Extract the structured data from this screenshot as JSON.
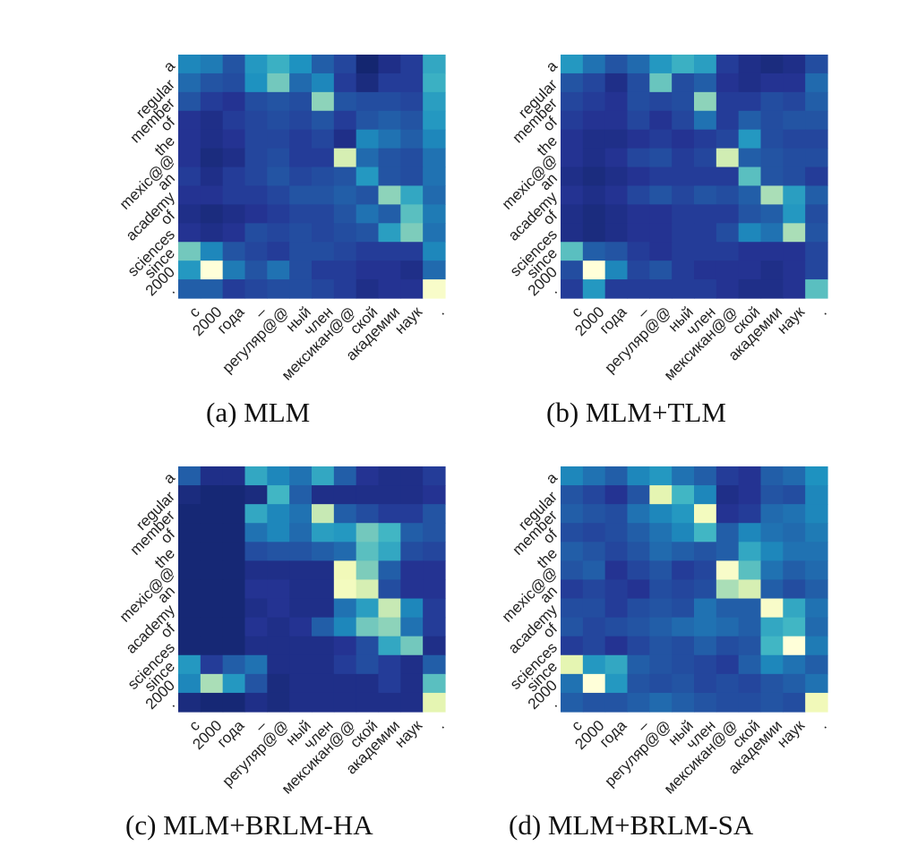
{
  "figure": {
    "colormap": {
      "name": "YlGnBu",
      "stops": [
        "#081d58",
        "#253494",
        "#225ea8",
        "#1d91c0",
        "#41b6c4",
        "#7fcdbb",
        "#c7e9b4",
        "#edf8b1",
        "#ffffd9"
      ]
    },
    "y_tokens": [
      "a",
      "regular",
      "member",
      "of",
      "the",
      "mexic@@",
      "an",
      "academy",
      "of",
      "sciences",
      "since",
      "2000",
      "."
    ],
    "x_tokens": [
      "с",
      "2000",
      "года",
      "–",
      "регуляр@@",
      "ный",
      "член",
      "мексикан@@",
      "ской",
      "академии",
      "наук",
      "."
    ]
  },
  "chart_data": [
    {
      "type": "heatmap",
      "title": "(a) MLM",
      "caption_prefix": "(a)",
      "caption_name": "MLM",
      "values": [
        [
          0.35,
          0.32,
          0.22,
          0.4,
          0.48,
          0.38,
          0.25,
          0.18,
          0.05,
          0.1,
          0.15,
          0.45
        ],
        [
          0.28,
          0.22,
          0.2,
          0.38,
          0.6,
          0.28,
          0.35,
          0.15,
          0.08,
          0.15,
          0.15,
          0.48
        ],
        [
          0.22,
          0.15,
          0.12,
          0.2,
          0.22,
          0.2,
          0.65,
          0.22,
          0.2,
          0.2,
          0.18,
          0.42
        ],
        [
          0.12,
          0.1,
          0.15,
          0.18,
          0.2,
          0.18,
          0.22,
          0.15,
          0.22,
          0.25,
          0.22,
          0.4
        ],
        [
          0.12,
          0.1,
          0.12,
          0.18,
          0.18,
          0.15,
          0.18,
          0.1,
          0.35,
          0.3,
          0.25,
          0.35
        ],
        [
          0.12,
          0.08,
          0.1,
          0.18,
          0.2,
          0.15,
          0.15,
          0.8,
          0.28,
          0.22,
          0.2,
          0.3
        ],
        [
          0.15,
          0.1,
          0.15,
          0.18,
          0.22,
          0.18,
          0.2,
          0.22,
          0.4,
          0.22,
          0.2,
          0.3
        ],
        [
          0.12,
          0.12,
          0.15,
          0.15,
          0.18,
          0.22,
          0.22,
          0.25,
          0.22,
          0.65,
          0.45,
          0.28
        ],
        [
          0.1,
          0.08,
          0.1,
          0.12,
          0.15,
          0.18,
          0.18,
          0.22,
          0.3,
          0.25,
          0.55,
          0.32
        ],
        [
          0.12,
          0.1,
          0.12,
          0.2,
          0.18,
          0.2,
          0.18,
          0.2,
          0.22,
          0.42,
          0.62,
          0.3
        ],
        [
          0.6,
          0.35,
          0.22,
          0.18,
          0.15,
          0.2,
          0.2,
          0.18,
          0.15,
          0.15,
          0.15,
          0.35
        ],
        [
          0.4,
          1.0,
          0.32,
          0.22,
          0.3,
          0.2,
          0.15,
          0.15,
          0.12,
          0.12,
          0.1,
          0.28
        ],
        [
          0.25,
          0.25,
          0.15,
          0.18,
          0.2,
          0.2,
          0.18,
          0.15,
          0.1,
          0.12,
          0.12,
          0.95
        ]
      ]
    },
    {
      "type": "heatmap",
      "title": "(b) MLM+TLM",
      "caption_prefix": "(b)",
      "caption_name": "MLM+TLM",
      "values": [
        [
          0.4,
          0.3,
          0.22,
          0.28,
          0.4,
          0.48,
          0.42,
          0.15,
          0.1,
          0.08,
          0.1,
          0.2
        ],
        [
          0.22,
          0.18,
          0.1,
          0.2,
          0.58,
          0.2,
          0.25,
          0.12,
          0.1,
          0.12,
          0.12,
          0.28
        ],
        [
          0.18,
          0.15,
          0.12,
          0.2,
          0.18,
          0.2,
          0.65,
          0.15,
          0.15,
          0.2,
          0.18,
          0.25
        ],
        [
          0.15,
          0.12,
          0.12,
          0.18,
          0.12,
          0.18,
          0.3,
          0.15,
          0.25,
          0.2,
          0.22,
          0.22
        ],
        [
          0.12,
          0.1,
          0.1,
          0.12,
          0.15,
          0.12,
          0.15,
          0.18,
          0.4,
          0.2,
          0.18,
          0.18
        ],
        [
          0.12,
          0.1,
          0.12,
          0.18,
          0.2,
          0.15,
          0.18,
          0.78,
          0.25,
          0.22,
          0.2,
          0.2
        ],
        [
          0.1,
          0.08,
          0.1,
          0.12,
          0.15,
          0.15,
          0.15,
          0.15,
          0.55,
          0.22,
          0.2,
          0.15
        ],
        [
          0.12,
          0.1,
          0.12,
          0.18,
          0.22,
          0.18,
          0.22,
          0.2,
          0.25,
          0.7,
          0.42,
          0.25
        ],
        [
          0.1,
          0.08,
          0.1,
          0.12,
          0.12,
          0.15,
          0.15,
          0.15,
          0.22,
          0.25,
          0.4,
          0.2
        ],
        [
          0.1,
          0.08,
          0.1,
          0.12,
          0.12,
          0.15,
          0.15,
          0.2,
          0.35,
          0.3,
          0.7,
          0.22
        ],
        [
          0.55,
          0.25,
          0.22,
          0.15,
          0.12,
          0.15,
          0.15,
          0.15,
          0.12,
          0.12,
          0.12,
          0.18
        ],
        [
          0.2,
          1.0,
          0.35,
          0.18,
          0.22,
          0.15,
          0.12,
          0.12,
          0.12,
          0.1,
          0.12,
          0.18
        ],
        [
          0.15,
          0.4,
          0.15,
          0.15,
          0.15,
          0.15,
          0.15,
          0.12,
          0.1,
          0.1,
          0.12,
          0.55
        ]
      ]
    },
    {
      "type": "heatmap",
      "title": "(c) MLM+BRLM-HA",
      "caption_prefix": "(c)",
      "caption_name": "MLM+BRLM-HA",
      "values": [
        [
          0.25,
          0.1,
          0.1,
          0.45,
          0.35,
          0.3,
          0.45,
          0.25,
          0.12,
          0.1,
          0.1,
          0.15
        ],
        [
          0.08,
          0.06,
          0.06,
          0.08,
          0.5,
          0.25,
          0.1,
          0.1,
          0.1,
          0.1,
          0.1,
          0.12
        ],
        [
          0.06,
          0.06,
          0.06,
          0.45,
          0.35,
          0.3,
          0.75,
          0.25,
          0.2,
          0.15,
          0.15,
          0.22
        ],
        [
          0.06,
          0.06,
          0.06,
          0.3,
          0.35,
          0.28,
          0.42,
          0.4,
          0.6,
          0.5,
          0.25,
          0.22
        ],
        [
          0.06,
          0.06,
          0.06,
          0.2,
          0.22,
          0.22,
          0.25,
          0.28,
          0.55,
          0.45,
          0.2,
          0.18
        ],
        [
          0.06,
          0.06,
          0.06,
          0.1,
          0.1,
          0.1,
          0.1,
          0.9,
          0.62,
          0.25,
          0.12,
          0.12
        ],
        [
          0.06,
          0.06,
          0.06,
          0.12,
          0.12,
          0.1,
          0.1,
          0.92,
          0.8,
          0.2,
          0.12,
          0.12
        ],
        [
          0.06,
          0.06,
          0.06,
          0.1,
          0.12,
          0.1,
          0.1,
          0.3,
          0.42,
          0.75,
          0.35,
          0.15
        ],
        [
          0.06,
          0.06,
          0.06,
          0.12,
          0.1,
          0.12,
          0.25,
          0.35,
          0.6,
          0.65,
          0.3,
          0.15
        ],
        [
          0.06,
          0.06,
          0.06,
          0.1,
          0.1,
          0.1,
          0.1,
          0.12,
          0.2,
          0.45,
          0.6,
          0.1
        ],
        [
          0.4,
          0.15,
          0.25,
          0.3,
          0.1,
          0.1,
          0.1,
          0.15,
          0.2,
          0.15,
          0.1,
          0.25
        ],
        [
          0.35,
          0.7,
          0.4,
          0.22,
          0.08,
          0.1,
          0.1,
          0.1,
          0.1,
          0.15,
          0.1,
          0.55
        ],
        [
          0.08,
          0.06,
          0.06,
          0.1,
          0.08,
          0.1,
          0.1,
          0.1,
          0.1,
          0.1,
          0.1,
          0.85
        ]
      ]
    },
    {
      "type": "heatmap",
      "title": "(d) MLM+BRLM-SA",
      "caption_prefix": "(d)",
      "caption_name": "MLM+BRLM-SA",
      "values": [
        [
          0.35,
          0.3,
          0.25,
          0.35,
          0.4,
          0.3,
          0.25,
          0.15,
          0.12,
          0.25,
          0.28,
          0.38
        ],
        [
          0.22,
          0.18,
          0.12,
          0.22,
          0.85,
          0.5,
          0.35,
          0.1,
          0.12,
          0.22,
          0.2,
          0.35
        ],
        [
          0.25,
          0.22,
          0.2,
          0.3,
          0.35,
          0.4,
          0.92,
          0.12,
          0.15,
          0.28,
          0.3,
          0.35
        ],
        [
          0.2,
          0.18,
          0.2,
          0.25,
          0.3,
          0.35,
          0.5,
          0.25,
          0.35,
          0.3,
          0.28,
          0.32
        ],
        [
          0.25,
          0.22,
          0.18,
          0.22,
          0.28,
          0.25,
          0.22,
          0.25,
          0.45,
          0.35,
          0.3,
          0.3
        ],
        [
          0.22,
          0.25,
          0.12,
          0.18,
          0.22,
          0.15,
          0.18,
          0.95,
          0.55,
          0.3,
          0.25,
          0.28
        ],
        [
          0.15,
          0.18,
          0.15,
          0.12,
          0.2,
          0.18,
          0.2,
          0.7,
          0.8,
          0.25,
          0.2,
          0.25
        ],
        [
          0.2,
          0.2,
          0.15,
          0.2,
          0.22,
          0.2,
          0.3,
          0.25,
          0.25,
          0.95,
          0.45,
          0.3
        ],
        [
          0.22,
          0.18,
          0.2,
          0.22,
          0.25,
          0.28,
          0.3,
          0.28,
          0.25,
          0.45,
          0.5,
          0.28
        ],
        [
          0.15,
          0.18,
          0.12,
          0.18,
          0.22,
          0.2,
          0.25,
          0.2,
          0.22,
          0.5,
          1.0,
          0.32
        ],
        [
          0.85,
          0.4,
          0.45,
          0.25,
          0.22,
          0.2,
          0.18,
          0.15,
          0.25,
          0.35,
          0.3,
          0.25
        ],
        [
          0.3,
          1.0,
          0.4,
          0.22,
          0.2,
          0.22,
          0.18,
          0.2,
          0.18,
          0.22,
          0.25,
          0.3
        ],
        [
          0.25,
          0.22,
          0.22,
          0.25,
          0.28,
          0.25,
          0.22,
          0.2,
          0.2,
          0.22,
          0.2,
          0.9
        ]
      ]
    }
  ]
}
